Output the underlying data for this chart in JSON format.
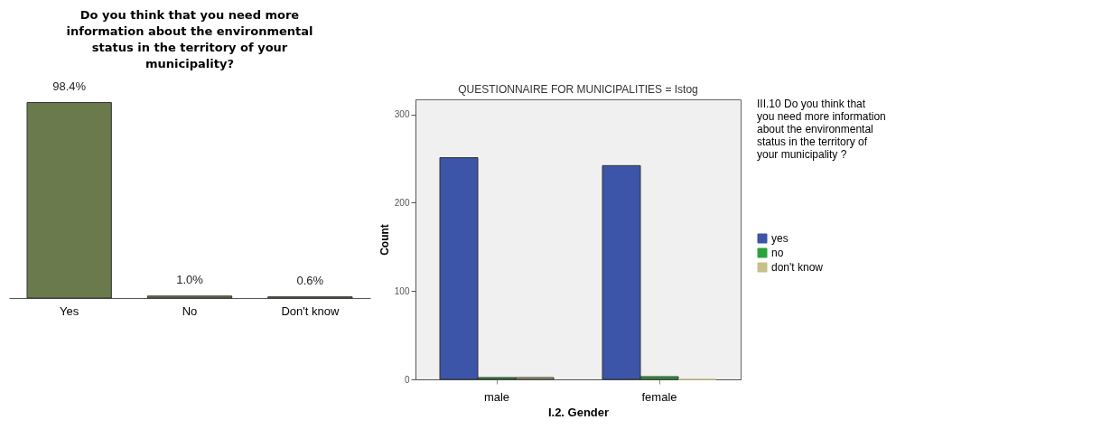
{
  "chart_data": [
    {
      "type": "bar",
      "title": "Do you think that you need more information about the environmental status in the territory of your municipality?",
      "categories": [
        "Yes",
        "No",
        "Don't know"
      ],
      "values": [
        98.4,
        1.0,
        0.6
      ],
      "value_labels": [
        "98.4%",
        "1.0%",
        "0.6%"
      ],
      "color": "#6b7a4c",
      "grid": false,
      "legend": false
    },
    {
      "type": "bar",
      "title": "QUESTIONNAIRE FOR MUNICIPALITIES = Istog",
      "xlabel": "I.2. Gender",
      "ylabel": "Count",
      "legend_title": "III.10 Do you think that you need more information about the environmental status in the territory of your municipality ?",
      "categories": [
        "male",
        "female"
      ],
      "series": [
        {
          "name": "yes",
          "color": "#3d55a8",
          "values": [
            251,
            242
          ]
        },
        {
          "name": "no",
          "color": "#2aa33a",
          "values": [
            2,
            3
          ]
        },
        {
          "name": "don't know",
          "color": "#c8c08a",
          "values": [
            2,
            0
          ]
        }
      ],
      "ylim": [
        0,
        317
      ],
      "yticks": [
        0,
        100,
        200,
        300
      ],
      "grid": false,
      "legend": "right"
    }
  ]
}
